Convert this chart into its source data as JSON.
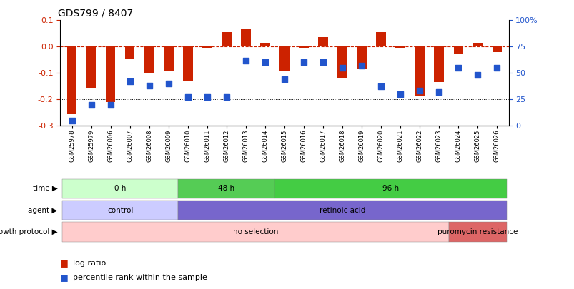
{
  "title": "GDS799 / 8407",
  "samples": [
    "GSM25978",
    "GSM25979",
    "GSM26006",
    "GSM26007",
    "GSM26008",
    "GSM26009",
    "GSM26010",
    "GSM26011",
    "GSM26012",
    "GSM26013",
    "GSM26014",
    "GSM26015",
    "GSM26016",
    "GSM26017",
    "GSM26018",
    "GSM26019",
    "GSM26020",
    "GSM26021",
    "GSM26022",
    "GSM26023",
    "GSM26024",
    "GSM26025",
    "GSM26026"
  ],
  "log_ratio": [
    -0.255,
    -0.16,
    -0.21,
    -0.045,
    -0.1,
    -0.09,
    -0.13,
    -0.005,
    0.055,
    0.065,
    0.015,
    -0.09,
    -0.005,
    0.035,
    -0.12,
    -0.085,
    0.055,
    -0.005,
    -0.185,
    -0.135,
    -0.03,
    0.015,
    -0.02
  ],
  "percentile": [
    5,
    20,
    20,
    42,
    38,
    40,
    27,
    27,
    27,
    62,
    60,
    44,
    60,
    60,
    55,
    57,
    37,
    30,
    33,
    32,
    55,
    48,
    55
  ],
  "bar_color": "#cc2200",
  "dot_color": "#2255cc",
  "ylim_left": [
    -0.3,
    0.1
  ],
  "ylim_right": [
    0,
    100
  ],
  "yticks_left": [
    -0.3,
    -0.2,
    -0.1,
    0.0,
    0.1
  ],
  "yticks_right": [
    0,
    25,
    50,
    75,
    100
  ],
  "dotted_lines": [
    -0.1,
    -0.2
  ],
  "time_groups": [
    {
      "label": "0 h",
      "start": 0,
      "end": 5,
      "color": "#ccffcc"
    },
    {
      "label": "48 h",
      "start": 6,
      "end": 10,
      "color": "#55cc55"
    },
    {
      "label": "96 h",
      "start": 11,
      "end": 22,
      "color": "#44cc44"
    }
  ],
  "agent_groups": [
    {
      "label": "control",
      "start": 0,
      "end": 5,
      "color": "#ccccff"
    },
    {
      "label": "retinoic acid",
      "start": 6,
      "end": 22,
      "color": "#7766cc"
    }
  ],
  "growth_groups": [
    {
      "label": "no selection",
      "start": 0,
      "end": 19,
      "color": "#ffcccc"
    },
    {
      "label": "puromycin resistance",
      "start": 20,
      "end": 22,
      "color": "#dd6666"
    }
  ],
  "background_color": "#ffffff"
}
